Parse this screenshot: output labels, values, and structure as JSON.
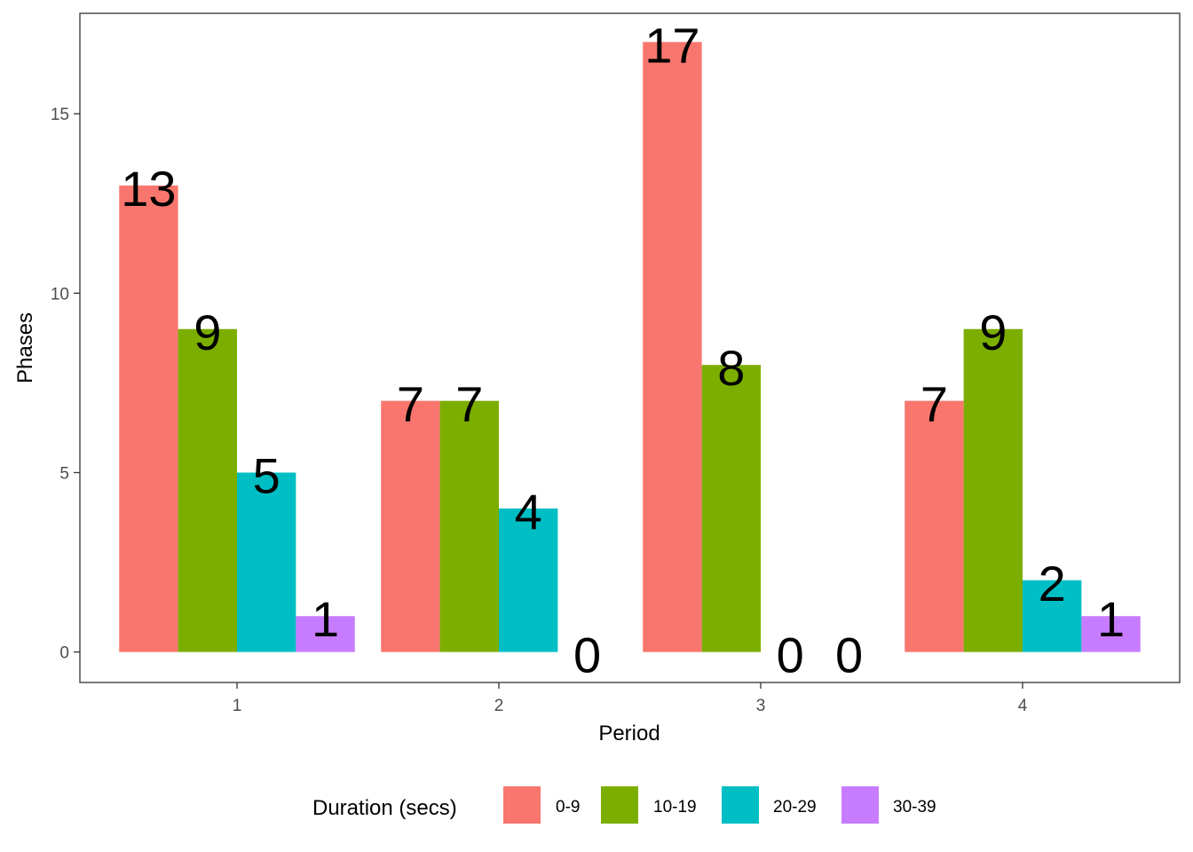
{
  "chart_data": {
    "type": "bar",
    "categories": [
      "1",
      "2",
      "3",
      "4"
    ],
    "series": [
      {
        "name": "0-9",
        "color": "#F8766D",
        "values": [
          13,
          7,
          17,
          7
        ]
      },
      {
        "name": "10-19",
        "color": "#7CAE00",
        "values": [
          9,
          7,
          8,
          9
        ]
      },
      {
        "name": "20-29",
        "color": "#00BFC4",
        "values": [
          5,
          4,
          0,
          2
        ]
      },
      {
        "name": "30-39",
        "color": "#C77CFF",
        "values": [
          1,
          0,
          0,
          1
        ]
      }
    ],
    "xlabel": "Period",
    "ylabel": "Phases",
    "ylim": [
      -0.85,
      17.8
    ],
    "yticks": [
      0,
      5,
      10,
      15
    ],
    "legend": {
      "title": "Duration (secs)",
      "position": "bottom"
    },
    "grid": false
  }
}
